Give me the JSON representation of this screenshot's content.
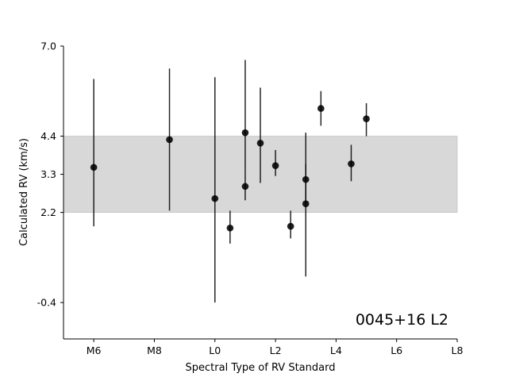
{
  "chart_data": {
    "type": "scatter",
    "xlabel": "Spectral Type of RV Standard",
    "ylabel": "Calculated RV (km/s)",
    "annotation": "0045+16 L2",
    "x_ticks": [
      {
        "x": -4,
        "label": "M6"
      },
      {
        "x": -2,
        "label": "M8"
      },
      {
        "x": 0,
        "label": "L0"
      },
      {
        "x": 2,
        "label": "L2"
      },
      {
        "x": 4,
        "label": "L4"
      },
      {
        "x": 6,
        "label": "L6"
      },
      {
        "x": 8,
        "label": "L8"
      }
    ],
    "y_ticks": [
      {
        "y": -0.4,
        "label": "-0.4"
      },
      {
        "y": 2.2,
        "label": "2.2"
      },
      {
        "y": 3.3,
        "label": "3.3"
      },
      {
        "y": 4.4,
        "label": "4.4"
      },
      {
        "y": 7.0,
        "label": "7.0"
      }
    ],
    "xlim": [
      -5,
      8
    ],
    "ylim": [
      -1.45,
      7.0
    ],
    "band": {
      "y_low": 2.2,
      "y_high": 4.4,
      "color": "#d8d8d8"
    },
    "grid": false,
    "marker_color": "#000000",
    "points": [
      {
        "x": -4.0,
        "y": 3.5,
        "err_low": 1.8,
        "err_high": 6.05
      },
      {
        "x": -1.5,
        "y": 4.3,
        "err_low": 2.25,
        "err_high": 6.35
      },
      {
        "x": 0.0,
        "y": 2.6,
        "err_low": -0.4,
        "err_high": 6.1
      },
      {
        "x": 0.5,
        "y": 1.75,
        "err_low": 1.3,
        "err_high": 2.25
      },
      {
        "x": 1.0,
        "y": 4.5,
        "err_low": 3.35,
        "err_high": 6.6
      },
      {
        "x": 1.0,
        "y": 2.95,
        "err_low": 2.55,
        "err_high": 3.35
      },
      {
        "x": 1.5,
        "y": 4.2,
        "err_low": 3.05,
        "err_high": 5.8
      },
      {
        "x": 2.0,
        "y": 3.55,
        "err_low": 3.25,
        "err_high": 4.0
      },
      {
        "x": 2.5,
        "y": 1.8,
        "err_low": 1.45,
        "err_high": 2.25
      },
      {
        "x": 3.0,
        "y": 3.15,
        "err_low": 2.55,
        "err_high": 3.6
      },
      {
        "x": 3.0,
        "y": 2.45,
        "err_low": 0.35,
        "err_high": 4.5
      },
      {
        "x": 3.5,
        "y": 5.2,
        "err_low": 4.7,
        "err_high": 5.7
      },
      {
        "x": 4.5,
        "y": 3.6,
        "err_low": 3.1,
        "err_high": 4.15
      },
      {
        "x": 5.0,
        "y": 4.9,
        "err_low": 4.4,
        "err_high": 5.35
      }
    ]
  }
}
